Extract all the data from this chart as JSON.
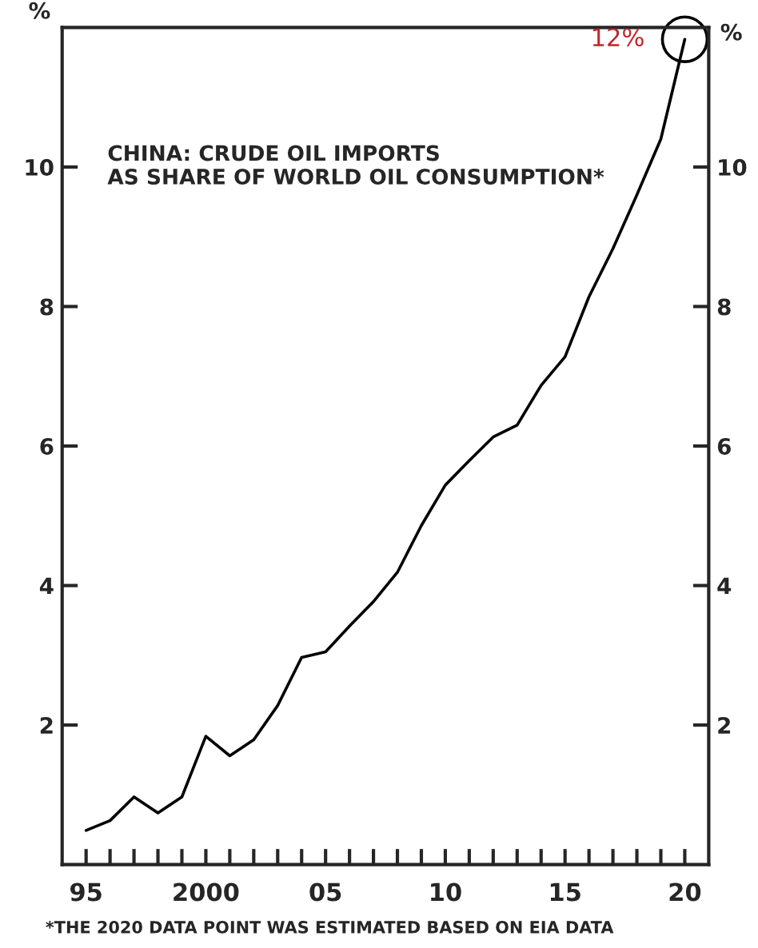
{
  "chart_data": {
    "type": "line",
    "title": "CHINA: CRUDE OIL IMPORTS\nAS SHARE OF WORLD OIL CONSUMPTION*",
    "ylabel": "%",
    "y2label": "%",
    "x": [
      1995,
      1996,
      1997,
      1998,
      1999,
      2000,
      2001,
      2002,
      2003,
      2004,
      2005,
      2006,
      2007,
      2008,
      2009,
      2010,
      2011,
      2012,
      2013,
      2014,
      2015,
      2016,
      2017,
      2018,
      2019,
      2020
    ],
    "series": [
      {
        "color": "#000000",
        "values": [
          0.49,
          0.63,
          0.97,
          0.74,
          0.97,
          1.84,
          1.56,
          1.79,
          2.28,
          2.97,
          3.05,
          3.42,
          3.77,
          4.19,
          4.86,
          5.44,
          5.79,
          6.13,
          6.3,
          6.87,
          7.28,
          8.14,
          8.83,
          9.6,
          10.4,
          11.83
        ]
      }
    ],
    "xlim": [
      1994,
      2021
    ],
    "xticks": [
      {
        "value": 1995,
        "label": "95"
      },
      {
        "value": 1996,
        "label": null
      },
      {
        "value": 1997,
        "label": null
      },
      {
        "value": 1998,
        "label": null
      },
      {
        "value": 1999,
        "label": null
      },
      {
        "value": 2000,
        "label": "2000"
      },
      {
        "value": 2001,
        "label": null
      },
      {
        "value": 2002,
        "label": null
      },
      {
        "value": 2003,
        "label": null
      },
      {
        "value": 2004,
        "label": null
      },
      {
        "value": 2005,
        "label": "05"
      },
      {
        "value": 2006,
        "label": null
      },
      {
        "value": 2007,
        "label": null
      },
      {
        "value": 2008,
        "label": null
      },
      {
        "value": 2009,
        "label": null
      },
      {
        "value": 2010,
        "label": "10"
      },
      {
        "value": 2011,
        "label": null
      },
      {
        "value": 2012,
        "label": null
      },
      {
        "value": 2013,
        "label": null
      },
      {
        "value": 2014,
        "label": null
      },
      {
        "value": 2015,
        "label": "15"
      },
      {
        "value": 2016,
        "label": null
      },
      {
        "value": 2017,
        "label": null
      },
      {
        "value": 2018,
        "label": null
      },
      {
        "value": 2019,
        "label": null
      },
      {
        "value": 2020,
        "label": "20"
      }
    ],
    "ylim": [
      0,
      12
    ],
    "yticks": [
      2,
      4,
      6,
      8,
      10
    ],
    "y2lim": [
      0,
      12
    ],
    "y2ticks": [
      2,
      4,
      6,
      8,
      10
    ],
    "grid": false,
    "legend": false,
    "line_style": "solid",
    "marker": "none",
    "annotations": [
      {
        "text": "12%",
        "x": 2020,
        "y": 11.83
      },
      "*THE 2020 DATA POINT WAS ESTIMATED BASED ON EIA DATA"
    ]
  }
}
